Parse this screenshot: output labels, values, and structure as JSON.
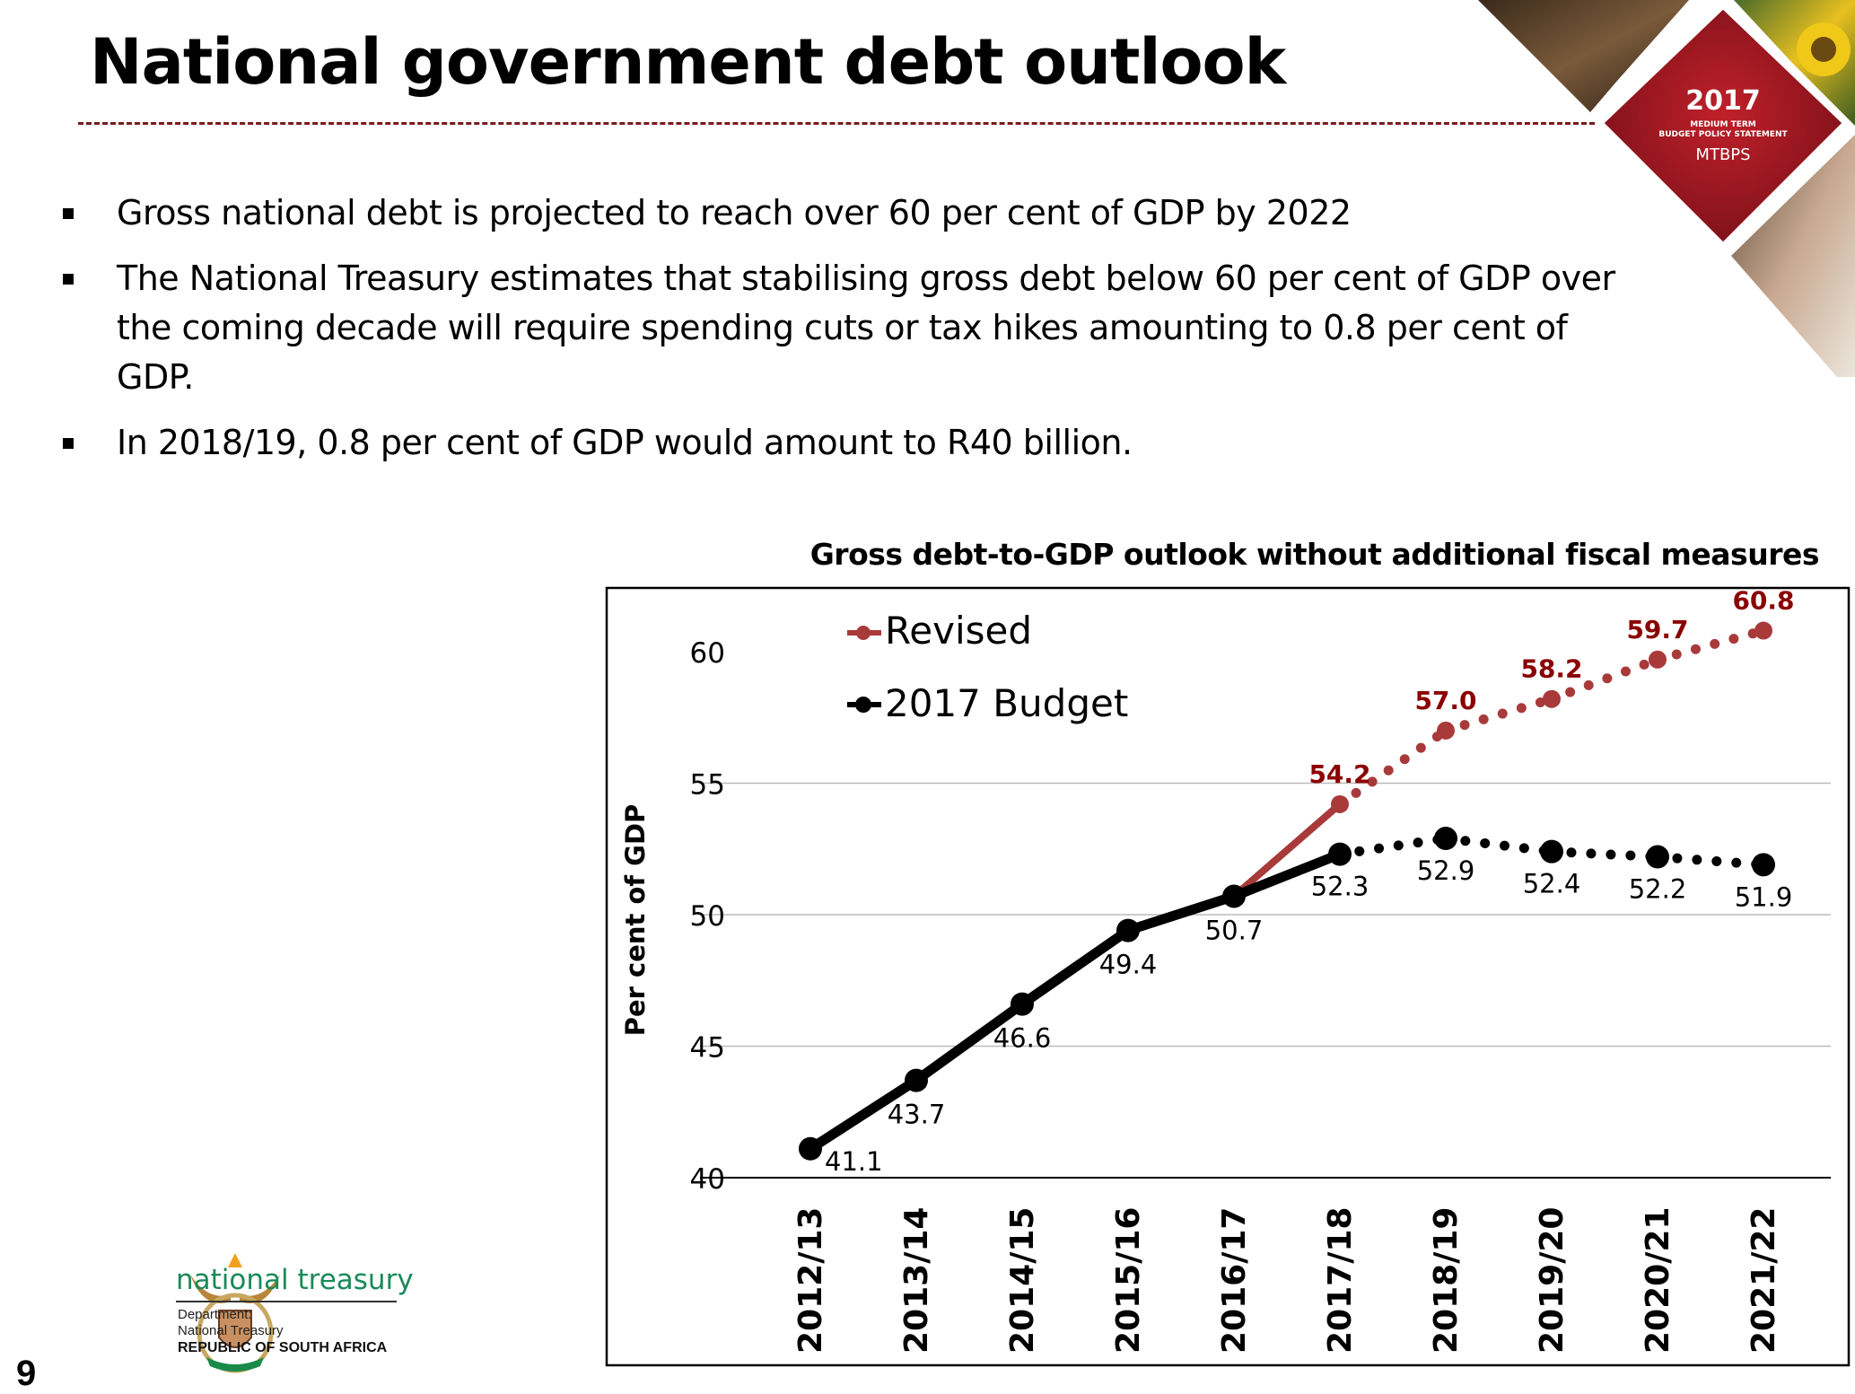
{
  "slide": {
    "title": "National government debt outlook",
    "page_number": "9",
    "bullets": [
      "Gross national debt is projected to reach over 60 per cent of GDP by 2022",
      "The National Treasury estimates that stabilising gross debt below 60 per cent of GDP over the coming decade will require spending cuts or tax hikes amounting to 0.8 per cent of GDP.",
      "In 2018/19, 0.8 per cent of GDP would amount to R40 billion."
    ],
    "badge": {
      "year": "2017",
      "line1": "MEDIUM TERM",
      "line2": "BUDGET POLICY STATEMENT",
      "abbr": "MTBPS"
    },
    "footer": {
      "org_name": "national treasury",
      "dept_label": "Department:",
      "dept_name": "National Treasury",
      "country": "REPUBLIC OF SOUTH AFRICA"
    },
    "colors": {
      "revised": "#a83a3a",
      "revised_label": "#8b0000",
      "budget": "#000000",
      "rule": "#7a1a1a",
      "treasury_green": "#1a8a5a"
    }
  },
  "chart_data": {
    "type": "line",
    "title": "Gross debt-to-GDP outlook without additional fiscal measures",
    "xlabel": "",
    "ylabel": "Per cent of GDP",
    "ylim": [
      40,
      60
    ],
    "yticks": [
      40,
      45,
      50,
      55,
      60
    ],
    "grid": true,
    "legend_position": "top-left",
    "categories": [
      "2012/13",
      "2013/14",
      "2014/15",
      "2015/16",
      "2016/17",
      "2017/18",
      "2018/19",
      "2019/20",
      "2020/21",
      "2021/22"
    ],
    "series": [
      {
        "name": "Revised",
        "color": "#a83a3a",
        "values": [
          null,
          null,
          null,
          null,
          50.7,
          54.2,
          57.0,
          58.2,
          59.7,
          60.8
        ],
        "labels": [
          null,
          null,
          null,
          null,
          null,
          "54.2",
          "57.0",
          "58.2",
          "59.7",
          "60.8"
        ],
        "solid_until_index": 5,
        "dotted_after_index": 5
      },
      {
        "name": "2017 Budget",
        "color": "#000000",
        "values": [
          41.1,
          43.7,
          46.6,
          49.4,
          50.7,
          52.3,
          52.9,
          52.4,
          52.2,
          51.9
        ],
        "labels": [
          "41.1",
          "43.7",
          "46.6",
          "49.4",
          "50.7",
          "52.3",
          "52.9",
          "52.4",
          "52.2",
          "51.9"
        ],
        "solid_until_index": 5,
        "dotted_after_index": 5
      }
    ]
  }
}
